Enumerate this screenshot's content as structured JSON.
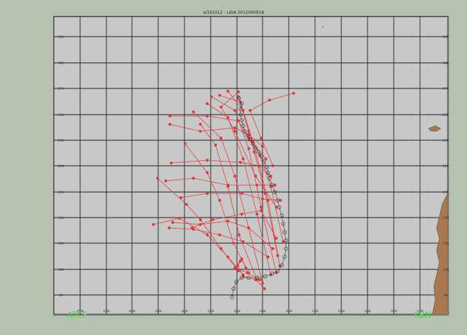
{
  "title": "al192012 - LIDA 2012090918",
  "corner_left": "ATCF",
  "corner_right": "KBN",
  "colors": {
    "background": "#b7c2ae",
    "plot": "#c8c8c8",
    "grid": "#1b1b1b",
    "track": "#e03b3b",
    "observed": "#3a3a3a",
    "land": "#a8794f",
    "label": "#43d843"
  },
  "lat_labels": [
    "35N",
    "30N",
    "27N",
    "25N",
    "23N",
    "20N",
    "17N",
    "15N",
    "13N",
    "10N",
    "8N"
  ],
  "lon_labels": [
    "45W",
    "42W",
    "40W",
    "38W",
    "36W",
    "33W",
    "30W",
    "28W",
    "26W",
    "23W",
    "20W",
    "18W",
    "16W",
    "13W"
  ]
}
